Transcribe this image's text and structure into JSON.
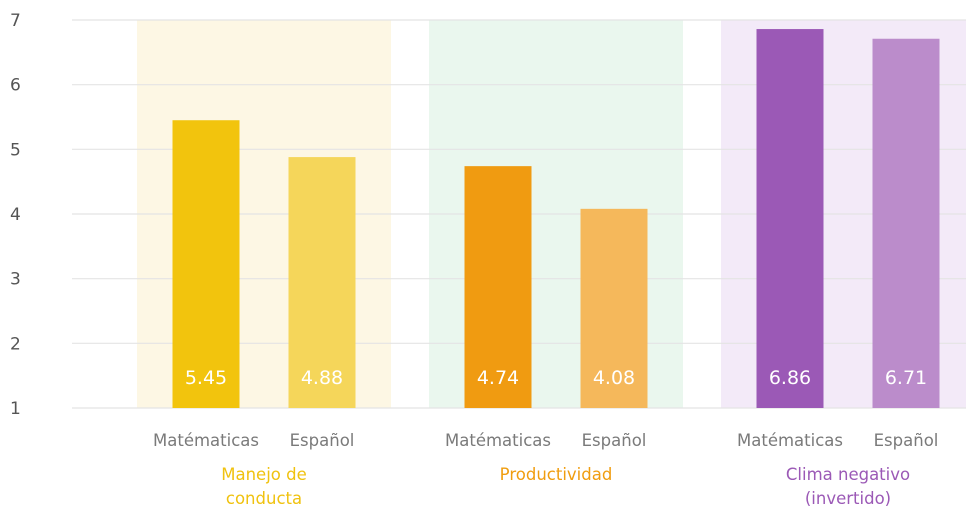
{
  "chart_data": {
    "type": "bar",
    "ylim": [
      1,
      7
    ],
    "yticks": [
      1,
      2,
      3,
      4,
      5,
      6,
      7
    ],
    "grid": true,
    "groups": [
      {
        "name": "Manejo de conducta",
        "name_lines": [
          "Manejo de",
          "conducta"
        ],
        "label_color": "#f0c20f",
        "band_color": "#fdf7e4",
        "bars": [
          {
            "category": "Matématicas",
            "value": 5.45,
            "label": "5.45",
            "color": "#f2c40d"
          },
          {
            "category": "Español",
            "value": 4.88,
            "label": "4.88",
            "color": "#f5d65a"
          }
        ]
      },
      {
        "name": "Productividad",
        "name_lines": [
          "Productividad"
        ],
        "label_color": "#f09d0f",
        "band_color": "#eaf7ee",
        "bars": [
          {
            "category": "Matématicas",
            "value": 4.74,
            "label": "4.74",
            "color": "#f09b11"
          },
          {
            "category": "Español",
            "value": 4.08,
            "label": "4.08",
            "color": "#f5b85b"
          }
        ]
      },
      {
        "name": "Clima negativo (invertido)",
        "name_lines": [
          "Clima negativo",
          "(invertido)"
        ],
        "label_color": "#9b59b6",
        "band_color": "#f3eaf8",
        "bars": [
          {
            "category": "Matématicas",
            "value": 6.86,
            "label": "6.86",
            "color": "#9b59b6"
          },
          {
            "category": "Español",
            "value": 6.71,
            "label": "6.71",
            "color": "#bb8ccb"
          }
        ]
      }
    ]
  }
}
